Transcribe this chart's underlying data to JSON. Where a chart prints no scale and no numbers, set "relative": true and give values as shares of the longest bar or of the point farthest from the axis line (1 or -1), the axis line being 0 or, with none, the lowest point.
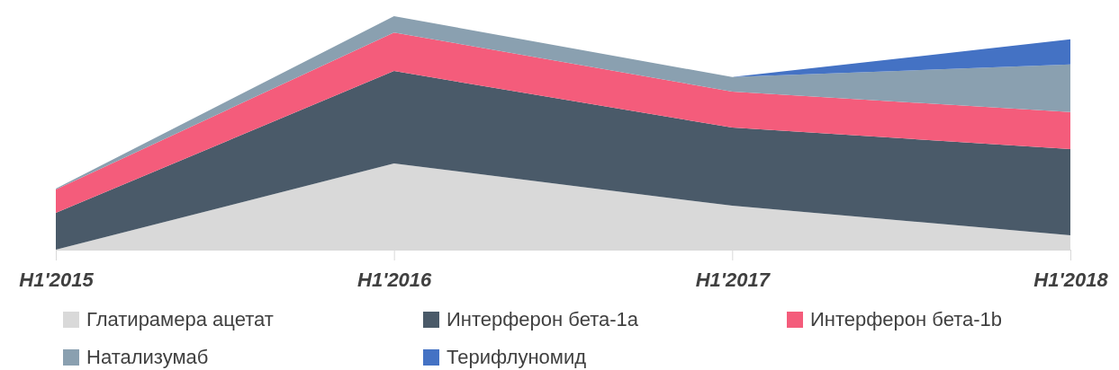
{
  "chart_data": {
    "type": "area",
    "stacked": true,
    "relative": true,
    "legend": "bottom",
    "categories": [
      "H1'2015",
      "H1'2016",
      "H1'2017",
      "H1'2018"
    ],
    "series": [
      {
        "name": "Глатирамера ацетат",
        "color": "#d9d9d9",
        "values": [
          0,
          0.369,
          0.188,
          0.062
        ]
      },
      {
        "name": "Интерферон бета-1a",
        "color": "#4a5a69",
        "values": [
          0.158,
          0.396,
          0.335,
          0.369
        ]
      },
      {
        "name": "Интерферон бета-1b",
        "color": "#f45c7b",
        "values": [
          0.1,
          0.165,
          0.154,
          0.158
        ]
      },
      {
        "name": "Натализумаб",
        "color": "#8aa0b0",
        "values": [
          0.004,
          0.07,
          0.062,
          0.204
        ]
      },
      {
        "name": "Терифлуномид",
        "color": "#4472c4",
        "values": [
          0,
          0,
          0,
          0.108
        ]
      }
    ]
  }
}
